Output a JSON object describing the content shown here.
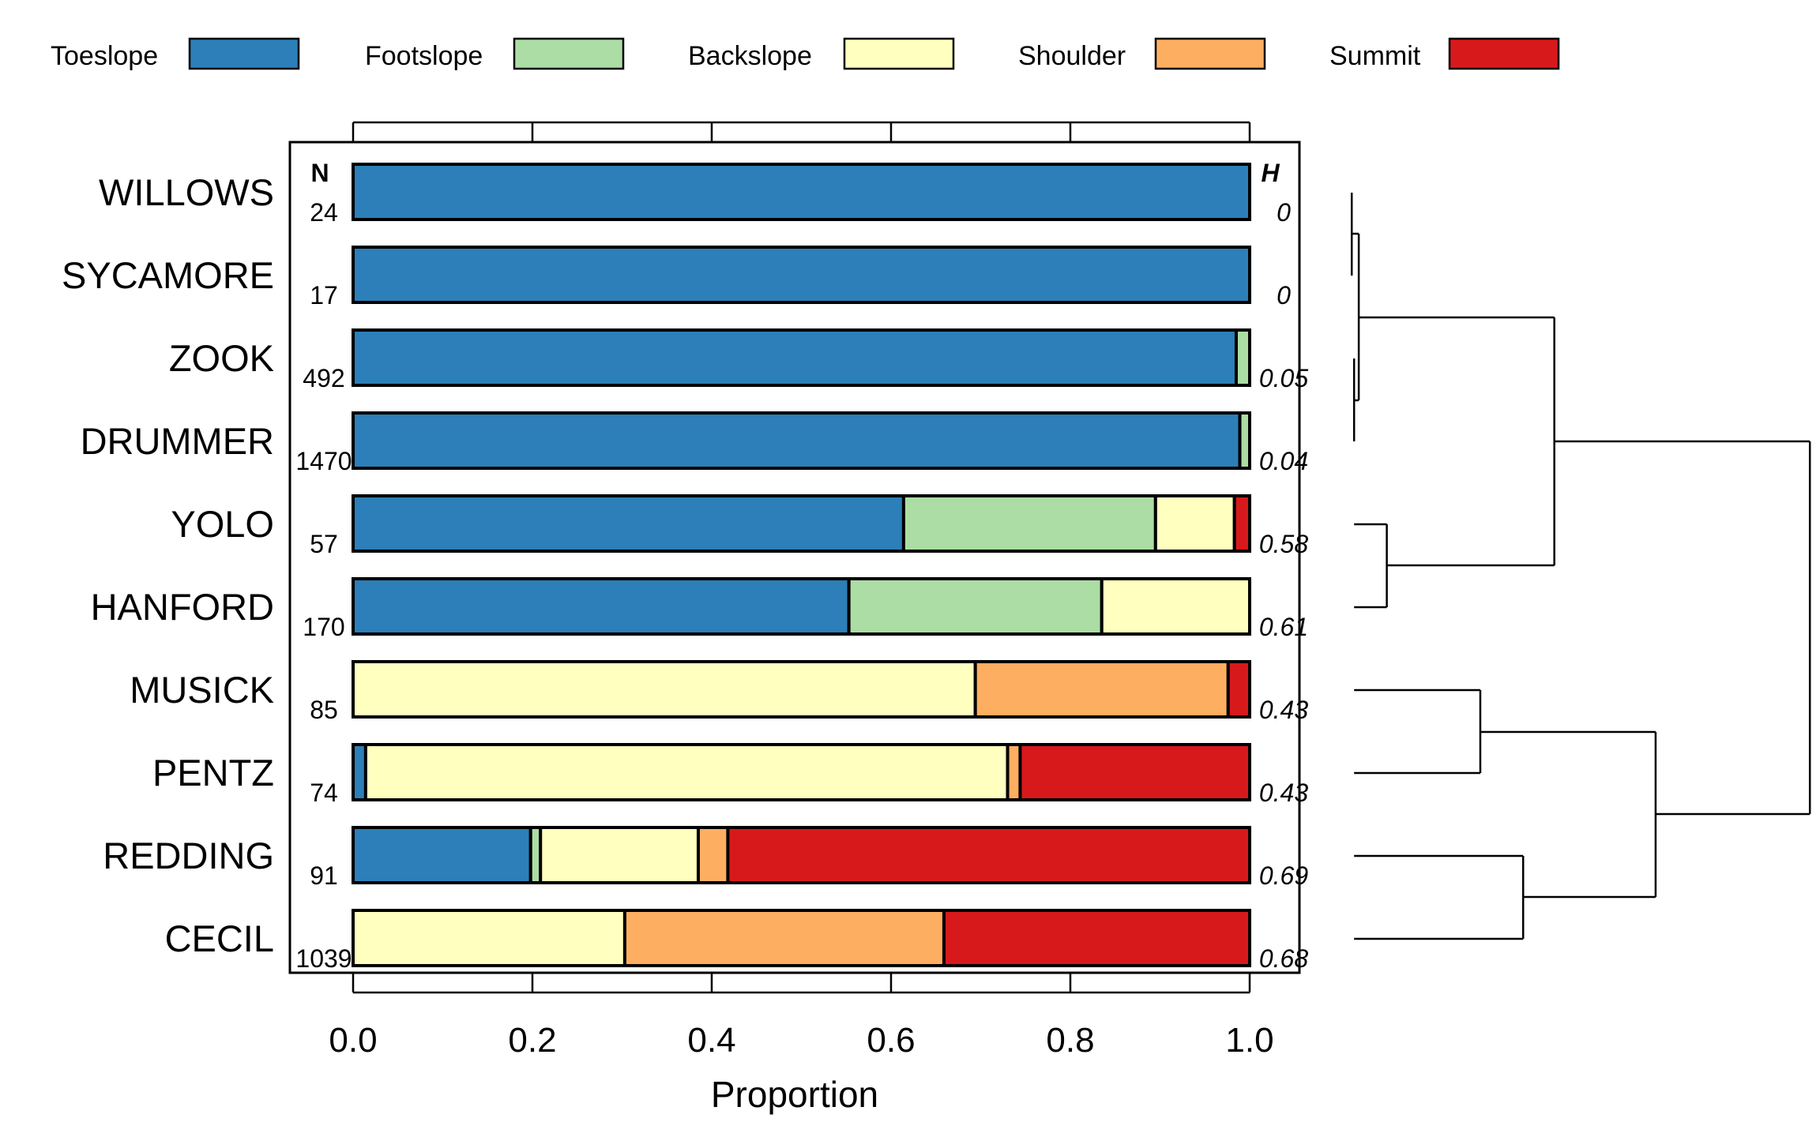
{
  "chart_data": {
    "type": "bar",
    "orientation": "horizontal",
    "stacked": true,
    "xlabel": "Proportion",
    "xlim": [
      0,
      1
    ],
    "x_ticks": [
      "0.0",
      "0.2",
      "0.4",
      "0.6",
      "0.8",
      "1.0"
    ],
    "legend_position": "top",
    "n_header": "N",
    "h_header": "H",
    "legend": [
      {
        "name": "Toeslope",
        "color": "#2c7fb8"
      },
      {
        "name": "Footslope",
        "color": "#abdda4"
      },
      {
        "name": "Backslope",
        "color": "#ffffbf"
      },
      {
        "name": "Shoulder",
        "color": "#fdae61"
      },
      {
        "name": "Summit",
        "color": "#d7191c"
      }
    ],
    "categories": [
      "WILLOWS",
      "SYCAMORE",
      "ZOOK",
      "DRUMMER",
      "YOLO",
      "HANFORD",
      "MUSICK",
      "PENTZ",
      "REDDING",
      "CECIL"
    ],
    "n": [
      "24",
      "17",
      "492",
      "1470",
      "57",
      "170",
      "85",
      "74",
      "91",
      "1039"
    ],
    "h": [
      "0",
      "0",
      "0.05",
      "0.04",
      "0.58",
      "0.61",
      "0.43",
      "0.43",
      "0.69",
      "0.68"
    ],
    "series": [
      {
        "name": "Toeslope",
        "values": [
          1.0,
          1.0,
          0.985,
          0.989,
          0.614,
          0.553,
          0.0,
          0.014,
          0.198,
          0.0
        ]
      },
      {
        "name": "Footslope",
        "values": [
          0.0,
          0.0,
          0.015,
          0.011,
          0.281,
          0.282,
          0.0,
          0.0,
          0.011,
          0.0
        ]
      },
      {
        "name": "Backslope",
        "values": [
          0.0,
          0.0,
          0.0,
          0.0,
          0.088,
          0.165,
          0.694,
          0.716,
          0.176,
          0.303
        ]
      },
      {
        "name": "Shoulder",
        "values": [
          0.0,
          0.0,
          0.0,
          0.0,
          0.0,
          0.0,
          0.282,
          0.014,
          0.033,
          0.356
        ]
      },
      {
        "name": "Summit",
        "values": [
          0.0,
          0.0,
          0.0,
          0.0,
          0.017,
          0.0,
          0.024,
          0.256,
          0.582,
          0.341
        ]
      }
    ],
    "dendrogram": true
  }
}
